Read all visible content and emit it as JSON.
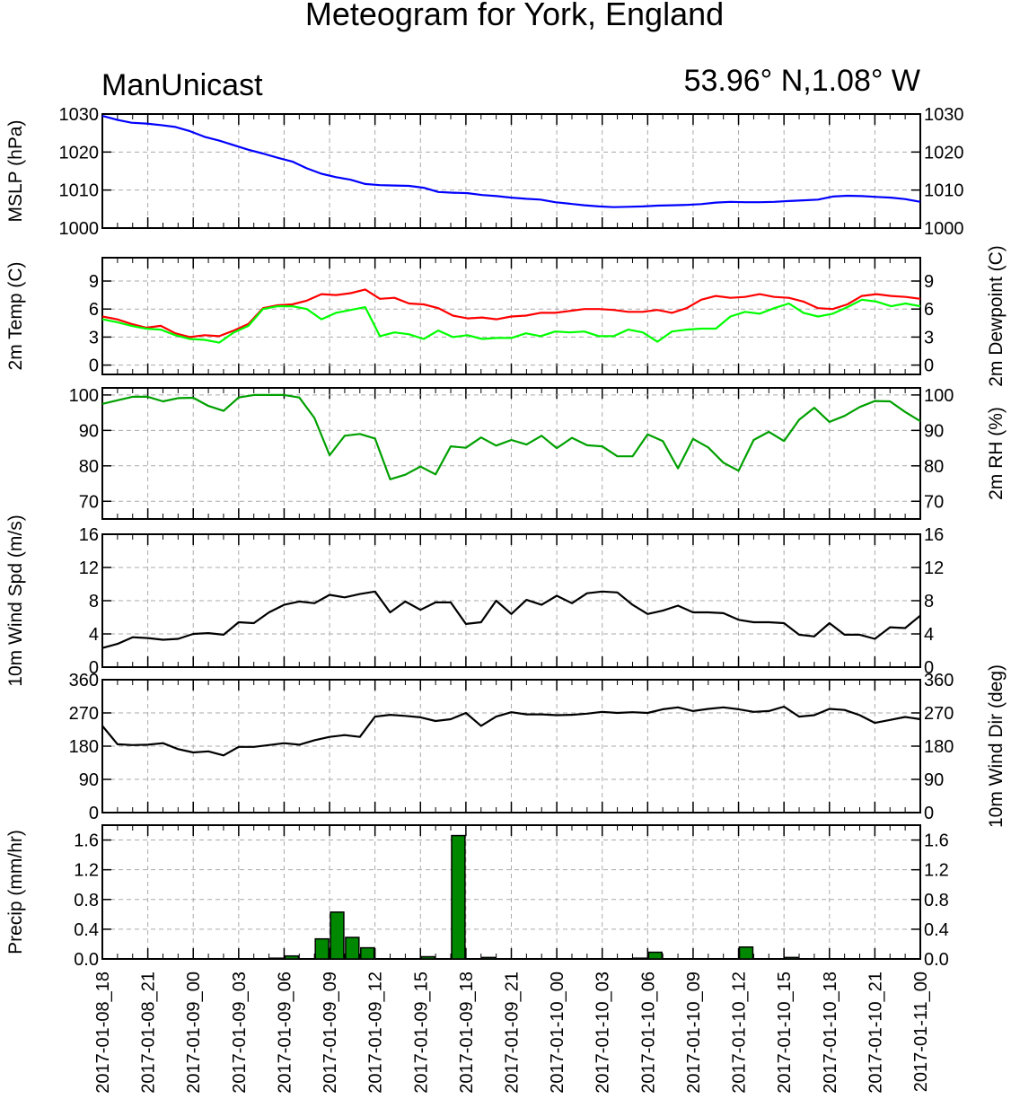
{
  "title": "Meteogram for York, England",
  "source_label": "ManUnicast",
  "location_label": "53.96° N,1.08° W",
  "time_labels": [
    "2017-01-08_18",
    "2017-01-08_21",
    "2017-01-09_00",
    "2017-01-09_03",
    "2017-01-09_06",
    "2017-01-09_09",
    "2017-01-09_12",
    "2017-01-09_15",
    "2017-01-09_18",
    "2017-01-09_21",
    "2017-01-10_00",
    "2017-01-10_03",
    "2017-01-10_06",
    "2017-01-10_09",
    "2017-01-10_12",
    "2017-01-10_15",
    "2017-01-10_18",
    "2017-01-10_21",
    "2017-01-11_00"
  ],
  "colors": {
    "mslp": "#0000ff",
    "temp": "#ff0000",
    "dewpoint": "#00ff00",
    "rh": "#00a000",
    "wind": "#000000",
    "precip_fill": "#008800",
    "grid": "#aaaaaa"
  },
  "chart_data": [
    {
      "type": "line",
      "ylabel": "MSLP (hPa)",
      "ylabel_right": "",
      "ylim": [
        1000,
        1030
      ],
      "yticks": [
        1000,
        1010,
        1020,
        1030
      ],
      "series": [
        {
          "values": [
            1029.5,
            1028.5,
            1027.7,
            1027.5,
            1027.1,
            1026.6,
            1025.5,
            1024.0,
            1023.0,
            1021.8,
            1020.6,
            1019.6,
            1018.5,
            1017.5,
            1015.7,
            1014.3,
            1013.4,
            1012.7,
            1011.6,
            1011.3,
            1011.2,
            1011.1,
            1010.6,
            1009.5,
            1009.3,
            1009.2,
            1008.7,
            1008.4,
            1008.0,
            1007.7,
            1007.5,
            1006.8,
            1006.4,
            1006.0,
            1005.7,
            1005.5,
            1005.6,
            1005.7,
            1005.9,
            1006.0,
            1006.1,
            1006.3,
            1006.7,
            1006.9,
            1006.8,
            1006.8,
            1006.9,
            1007.1,
            1007.3,
            1007.5,
            1008.3,
            1008.5,
            1008.4,
            1008.2,
            1008.0,
            1007.6,
            1006.9
          ]
        }
      ]
    },
    {
      "type": "line",
      "ylabel": "2m Temp (C)",
      "ylabel_right": "2m Dewpoint (C)",
      "ylim": [
        -1,
        11.5
      ],
      "yticks": [
        0,
        3,
        6,
        9
      ],
      "series": [
        {
          "values": [
            5.2,
            4.9,
            4.4,
            4.0,
            4.2,
            3.4,
            3.0,
            3.2,
            3.1,
            3.7,
            4.4,
            6.1,
            6.4,
            6.5,
            6.9,
            7.6,
            7.5,
            7.7,
            8.1,
            7.1,
            7.2,
            6.6,
            6.5,
            6.1,
            5.3,
            5.0,
            5.1,
            4.9,
            5.2,
            5.3,
            5.6,
            5.6,
            5.8,
            6.0,
            6.0,
            5.9,
            5.7,
            5.7,
            5.9,
            5.6,
            6.1,
            7.0,
            7.4,
            7.2,
            7.3,
            7.6,
            7.3,
            7.2,
            6.8,
            6.1,
            6.0,
            6.5,
            7.4,
            7.6,
            7.4,
            7.3,
            7.1
          ]
        },
        {
          "values": [
            4.9,
            4.6,
            4.2,
            3.9,
            3.8,
            3.2,
            2.8,
            2.7,
            2.4,
            3.5,
            4.2,
            6.0,
            6.3,
            6.3,
            6.0,
            4.9,
            5.6,
            5.9,
            6.2,
            3.1,
            3.5,
            3.3,
            2.8,
            3.7,
            3.0,
            3.2,
            2.8,
            2.9,
            2.9,
            3.4,
            3.1,
            3.6,
            3.5,
            3.6,
            3.1,
            3.1,
            3.8,
            3.5,
            2.5,
            3.6,
            3.8,
            3.9,
            3.9,
            5.2,
            5.7,
            5.5,
            6.1,
            6.6,
            5.6,
            5.2,
            5.5,
            6.2,
            7.0,
            6.8,
            6.3,
            6.6,
            6.3
          ]
        }
      ]
    },
    {
      "type": "line",
      "ylabel": "",
      "ylabel_right": "2m RH (%)",
      "ylim": [
        65,
        102
      ],
      "yticks": [
        70,
        80,
        90,
        100
      ],
      "series": [
        {
          "values": [
            97.5,
            98.5,
            99.5,
            99.5,
            98.2,
            99.1,
            99.2,
            96.9,
            95.5,
            99.3,
            100,
            100,
            100,
            99.3,
            93.5,
            83.0,
            88.5,
            89.0,
            87.7,
            76.2,
            77.5,
            79.8,
            77.6,
            85.5,
            85.1,
            88.0,
            85.7,
            87.3,
            86.0,
            88.5,
            85.0,
            87.9,
            85.8,
            85.5,
            82.7,
            82.7,
            88.9,
            87.0,
            79.3,
            87.6,
            85.2,
            80.9,
            78.6,
            87.3,
            89.6,
            87.0,
            93.0,
            96.4,
            92.4,
            94.1,
            96.6,
            98.3,
            98.2,
            95.2,
            92.6
          ]
        }
      ]
    },
    {
      "type": "line",
      "ylabel": "10m Wind Spd (m/s)",
      "ylabel_right": "",
      "ylim": [
        0,
        16
      ],
      "yticks": [
        0,
        4,
        8,
        12,
        16
      ],
      "series": [
        {
          "values": [
            2.3,
            2.8,
            3.6,
            3.5,
            3.3,
            3.4,
            4.0,
            4.1,
            3.9,
            5.4,
            5.3,
            6.6,
            7.5,
            7.9,
            7.7,
            8.7,
            8.4,
            8.8,
            9.1,
            6.6,
            7.9,
            6.9,
            7.8,
            7.8,
            5.2,
            5.4,
            8.0,
            6.4,
            8.1,
            7.5,
            8.6,
            7.7,
            8.9,
            9.1,
            9.0,
            7.5,
            6.4,
            6.8,
            7.4,
            6.6,
            6.6,
            6.5,
            5.7,
            5.4,
            5.4,
            5.3,
            3.9,
            3.7,
            5.3,
            3.9,
            3.9,
            3.4,
            4.8,
            4.7,
            6.2
          ]
        }
      ]
    },
    {
      "type": "line",
      "ylabel": "",
      "ylabel_right": "10m Wind Dir (deg)",
      "ylim": [
        0,
        360
      ],
      "yticks": [
        0,
        90,
        180,
        270,
        360
      ],
      "series": [
        {
          "values": [
            235,
            185,
            183,
            184,
            188,
            172,
            163,
            166,
            155,
            178,
            178,
            183,
            188,
            184,
            196,
            205,
            210,
            205,
            260,
            265,
            262,
            258,
            248,
            253,
            270,
            235,
            260,
            272,
            266,
            266,
            264,
            265,
            268,
            273,
            270,
            272,
            270,
            280,
            285,
            275,
            281,
            285,
            280,
            273,
            275,
            287,
            260,
            264,
            281,
            278,
            264,
            243,
            251,
            259,
            253
          ]
        }
      ]
    },
    {
      "type": "bar",
      "ylabel": "Precip (mm/hr)",
      "ylabel_right": "",
      "ylim": [
        0,
        1.8
      ],
      "yticks": [
        0.0,
        0.4,
        0.8,
        1.2,
        1.6
      ],
      "ytick_labels": [
        "0.0",
        "0.4",
        "0.8",
        "1.2",
        "1.6"
      ],
      "values": [
        0,
        0,
        0,
        0,
        0,
        0,
        0,
        0,
        0,
        0,
        0,
        0.01,
        0.04,
        0,
        0.27,
        0.63,
        0.29,
        0.15,
        0,
        0,
        0,
        0.03,
        0,
        1.66,
        0,
        0.02,
        0,
        0,
        0,
        0,
        0,
        0,
        0,
        0,
        0,
        0.01,
        0.09,
        0,
        0,
        0,
        0,
        0,
        0.16,
        0,
        0,
        0.02,
        0,
        0,
        0,
        0,
        0,
        0,
        0,
        0
      ]
    }
  ]
}
